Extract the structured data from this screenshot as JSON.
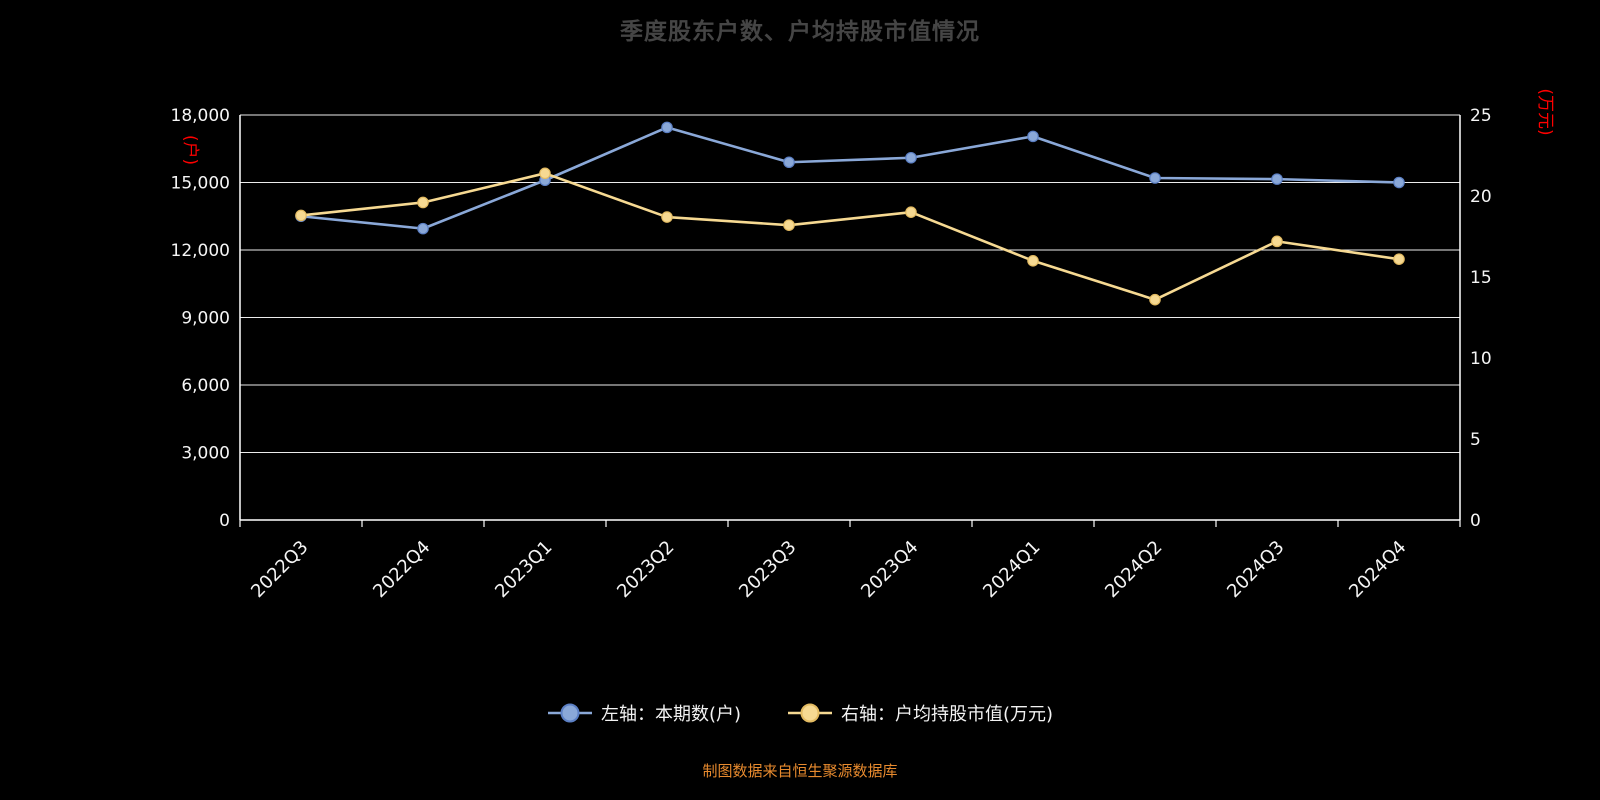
{
  "chart_data": {
    "type": "line",
    "title": "季度股东户数、户均持股市值情况",
    "categories": [
      "2022Q3",
      "2022Q4",
      "2023Q1",
      "2023Q2",
      "2023Q3",
      "2023Q4",
      "2024Q1",
      "2024Q2",
      "2024Q3",
      "2024Q4"
    ],
    "series": [
      {
        "name": "左轴：本期数(户)",
        "axis": "left",
        "color": "#8aa8d8",
        "edge_color": "#5b7fc4",
        "values": [
          13500,
          12950,
          15100,
          17450,
          15900,
          16100,
          17050,
          15200,
          15150,
          15000
        ]
      },
      {
        "name": "右轴：户均持股市值(万元)",
        "axis": "right",
        "color": "#f6d992",
        "edge_color": "#e3bb62",
        "values": [
          18.8,
          19.6,
          21.4,
          18.7,
          18.2,
          19.0,
          16.0,
          13.6,
          17.2,
          16.1
        ]
      }
    ],
    "left_axis": {
      "unit": "(户)",
      "min": 0,
      "max": 18000,
      "step": 3000,
      "unit_color": "#ff0000"
    },
    "right_axis": {
      "unit": "(万元)",
      "min": 0,
      "max": 25,
      "step": 5,
      "unit_color": "#ff0000"
    },
    "grid": true,
    "legend_position": "bottom",
    "footer": "制图数据来自恒生聚源数据库",
    "colors": {
      "grid": "#ececec",
      "axis": "#ffffff",
      "tick_label": "#f5f5f5",
      "title": "#454545",
      "footer": "#e78a2e"
    }
  }
}
